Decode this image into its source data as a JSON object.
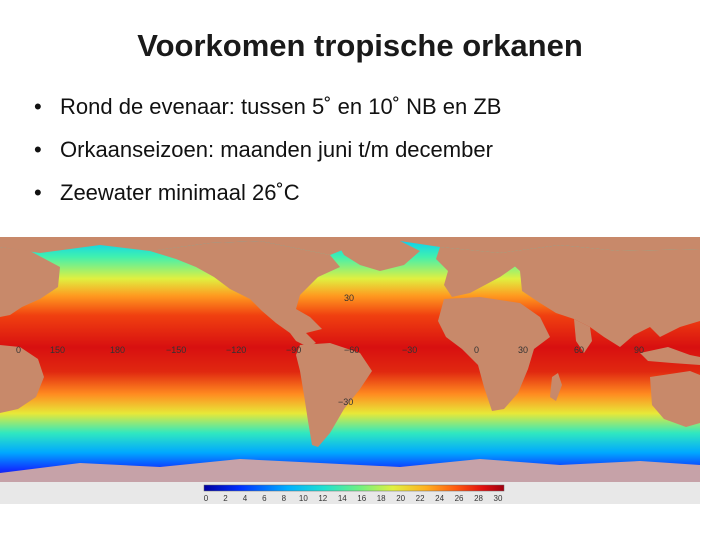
{
  "slide": {
    "title": "Voorkomen tropische orkanen",
    "bullets": [
      "Rond de evenaar: tussen 5˚ en 10˚ NB en ZB",
      "Orkaanseizoen: maanden juni t/m december",
      "Zeewater minimaal 26˚C"
    ]
  },
  "map": {
    "lat_labels": [
      "30",
      "0",
      "−30"
    ],
    "lon_labels": [
      "150",
      "180",
      "−150",
      "−120",
      "−90",
      "−60",
      "−30",
      "0",
      "30",
      "60",
      "90"
    ],
    "colorbar_ticks": [
      "0",
      "2",
      "4",
      "6",
      "8",
      "10",
      "12",
      "14",
      "16",
      "18",
      "20",
      "22",
      "24",
      "26",
      "28",
      "30"
    ],
    "colors": {
      "land": "#c8896a",
      "ice": "#c6a2a8",
      "colorbar": [
        "#0000a0",
        "#0030ff",
        "#00b0ff",
        "#20e0d0",
        "#70f080",
        "#e0f040",
        "#ffb020",
        "#ff5a10",
        "#e01010",
        "#a00010"
      ]
    }
  }
}
